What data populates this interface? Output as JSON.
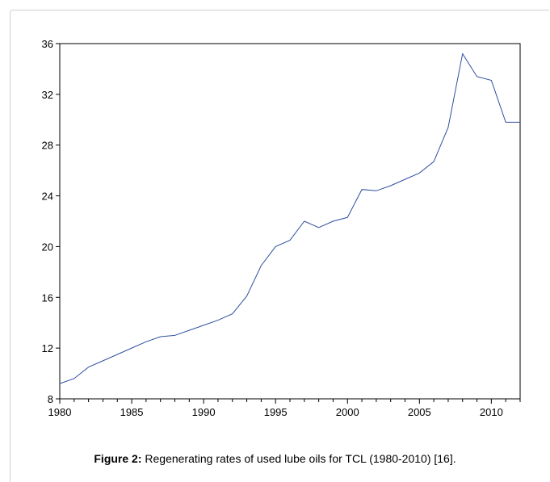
{
  "caption": {
    "label": "Figure 2:",
    "text": " Regenerating rates of used lube oils for TCL (1980-2010) [16]."
  },
  "chart_data": {
    "type": "line",
    "title": "",
    "xlabel": "",
    "ylabel": "",
    "xlim": [
      1980,
      2012
    ],
    "ylim": [
      8,
      36
    ],
    "x_ticks": [
      1980,
      1985,
      1990,
      1995,
      2000,
      2005,
      2010
    ],
    "y_ticks": [
      8,
      12,
      16,
      20,
      24,
      28,
      32,
      36
    ],
    "grid": false,
    "line_color": "#2f4f9f",
    "series": [
      {
        "x": [
          1980,
          1981,
          1982,
          1983,
          1984,
          1985,
          1986,
          1987,
          1988,
          1989,
          1990,
          1991,
          1992,
          1993,
          1994,
          1995,
          1996,
          1997,
          1998,
          1999,
          2000,
          2001,
          2002,
          2003,
          2004,
          2005,
          2006,
          2007,
          2008,
          2009,
          2010,
          2011,
          2012
        ],
        "values": [
          9.2,
          9.6,
          10.5,
          11.0,
          11.5,
          12.0,
          12.5,
          12.9,
          13.0,
          13.4,
          13.8,
          14.2,
          14.7,
          16.1,
          18.5,
          20.0,
          20.5,
          22.0,
          21.5,
          22.0,
          22.3,
          24.5,
          24.4,
          24.8,
          25.3,
          25.8,
          26.7,
          29.4,
          35.2,
          33.4,
          33.1,
          29.8,
          29.8
        ]
      }
    ]
  }
}
